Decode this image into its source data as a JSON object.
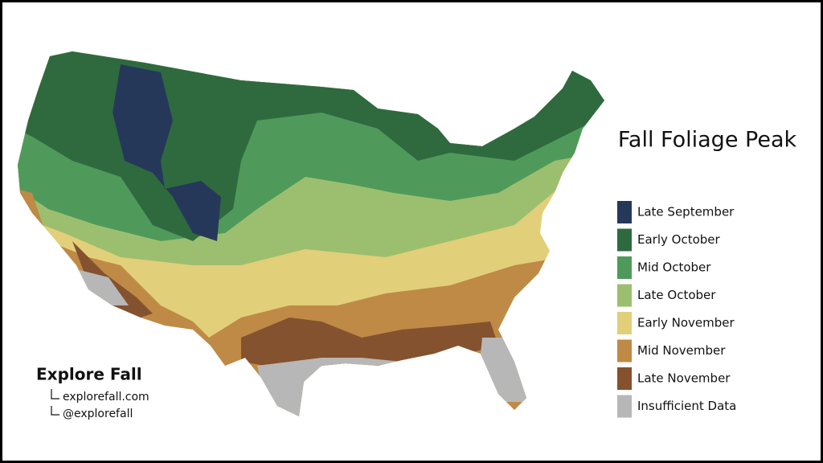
{
  "title": "Fall Foliage Peak",
  "legend": [
    {
      "label": "Late September",
      "color": "#26385a"
    },
    {
      "label": "Early October",
      "color": "#2f6a3f"
    },
    {
      "label": "Mid October",
      "color": "#4f9a5b"
    },
    {
      "label": "Late October",
      "color": "#9cbf6f"
    },
    {
      "label": "Early November",
      "color": "#e2cf7a"
    },
    {
      "label": "Mid November",
      "color": "#bf8a46"
    },
    {
      "label": "Late November",
      "color": "#84522e"
    },
    {
      "label": "Insufficient Data",
      "color": "#b7b7b7"
    }
  ],
  "brand": {
    "name": "Explore Fall",
    "links": [
      "explorefall.com",
      "@explorefall"
    ]
  }
}
